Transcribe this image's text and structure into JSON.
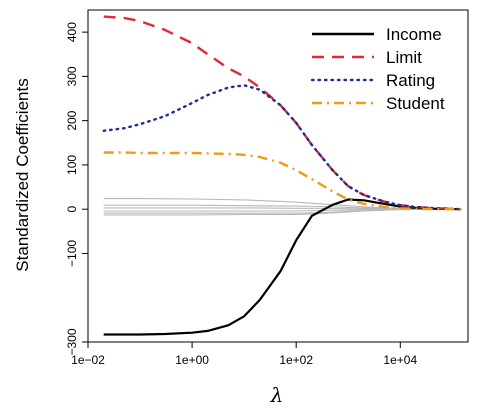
{
  "chart_data": {
    "type": "line",
    "xlabel": "λ",
    "ylabel": "Standardized Coefficients",
    "x_scale": "log10",
    "xlim": [
      0.01,
      200000
    ],
    "ylim": [
      -300,
      450
    ],
    "x_tick_labels": [
      "1e−02",
      "1e+00",
      "1e+02",
      "1e+04"
    ],
    "y_tick_labels": [
      "−300",
      "−100",
      "0",
      "100",
      "200",
      "300",
      "400"
    ],
    "grid": false,
    "legend_position": "top-right",
    "series": [
      {
        "name": "Income",
        "color": "#000000",
        "dash": "solid",
        "x": [
          0.02,
          0.05,
          0.1,
          0.3,
          1,
          2,
          5,
          10,
          20,
          50,
          100,
          200,
          500,
          1000,
          2000,
          5000,
          10000,
          20000,
          50000,
          150000
        ],
        "y": [
          -283,
          -283,
          -283,
          -282,
          -279,
          -275,
          -262,
          -242,
          -205,
          -140,
          -70,
          -15,
          10,
          22,
          20,
          12,
          6,
          3,
          1,
          0
        ]
      },
      {
        "name": "Limit",
        "color": "#df2a3a",
        "dash": "dashed",
        "x": [
          0.02,
          0.05,
          0.1,
          0.3,
          1,
          2,
          5,
          10,
          20,
          50,
          100,
          200,
          500,
          1000,
          2000,
          5000,
          10000,
          20000,
          50000,
          150000
        ],
        "y": [
          435,
          432,
          425,
          405,
          375,
          350,
          318,
          300,
          275,
          235,
          195,
          145,
          88,
          52,
          32,
          17,
          9,
          5,
          2,
          0
        ]
      },
      {
        "name": "Rating",
        "color": "#1f2f8f",
        "dash": "dotted",
        "x": [
          0.02,
          0.05,
          0.1,
          0.3,
          1,
          2,
          5,
          10,
          20,
          50,
          100,
          200,
          500,
          1000,
          2000,
          5000,
          10000,
          20000,
          50000,
          150000
        ],
        "y": [
          177,
          183,
          192,
          210,
          240,
          258,
          275,
          280,
          270,
          235,
          195,
          145,
          88,
          52,
          32,
          17,
          9,
          5,
          2,
          0
        ]
      },
      {
        "name": "Student",
        "color": "#ef9b16",
        "dash": "dashdot",
        "x": [
          0.02,
          0.05,
          0.1,
          0.3,
          1,
          2,
          5,
          10,
          20,
          50,
          100,
          200,
          500,
          1000,
          2000,
          5000,
          10000,
          20000,
          50000,
          150000
        ],
        "y": [
          128,
          128,
          127,
          127,
          127,
          126,
          125,
          123,
          118,
          105,
          88,
          68,
          40,
          22,
          12,
          5,
          2,
          1,
          0,
          0
        ]
      },
      {
        "color": "#b8b8b8",
        "dash": "solid",
        "x": [
          0.02,
          0.1,
          1,
          10,
          100,
          300,
          1000,
          3000,
          10000,
          30000,
          150000
        ],
        "y": [
          24,
          24,
          23,
          21,
          16,
          12,
          8,
          4,
          2,
          1,
          0
        ]
      },
      {
        "color": "#b8b8b8",
        "dash": "solid",
        "x": [
          0.02,
          0.1,
          1,
          10,
          100,
          300,
          1000,
          3000,
          10000,
          30000,
          150000
        ],
        "y": [
          9,
          9,
          9,
          8,
          7,
          6,
          4,
          2,
          1,
          0,
          0
        ]
      },
      {
        "color": "#b8b8b8",
        "dash": "solid",
        "x": [
          0.02,
          0.1,
          1,
          10,
          100,
          300,
          1000,
          3000,
          10000,
          30000,
          150000
        ],
        "y": [
          3,
          3,
          3,
          3,
          2,
          2,
          1,
          1,
          0,
          0,
          0
        ]
      },
      {
        "color": "#b8b8b8",
        "dash": "solid",
        "x": [
          0.02,
          0.1,
          1,
          10,
          100,
          300,
          1000,
          3000,
          10000,
          30000,
          150000
        ],
        "y": [
          -4,
          -4,
          -4,
          -4,
          -4,
          -3,
          -2,
          -1,
          0,
          0,
          0
        ]
      },
      {
        "color": "#b8b8b8",
        "dash": "solid",
        "x": [
          0.02,
          0.1,
          1,
          10,
          100,
          300,
          1000,
          3000,
          10000,
          30000,
          150000
        ],
        "y": [
          -9,
          -9,
          -9,
          -9,
          -9,
          -8,
          -5,
          -3,
          -1,
          0,
          0
        ]
      },
      {
        "color": "#b8b8b8",
        "dash": "solid",
        "x": [
          0.02,
          0.1,
          1,
          10,
          100,
          300,
          1000,
          3000,
          10000,
          30000,
          150000
        ],
        "y": [
          -13,
          -13,
          -13,
          -12,
          -12,
          -10,
          -6,
          -3,
          -1,
          0,
          0
        ]
      }
    ]
  }
}
